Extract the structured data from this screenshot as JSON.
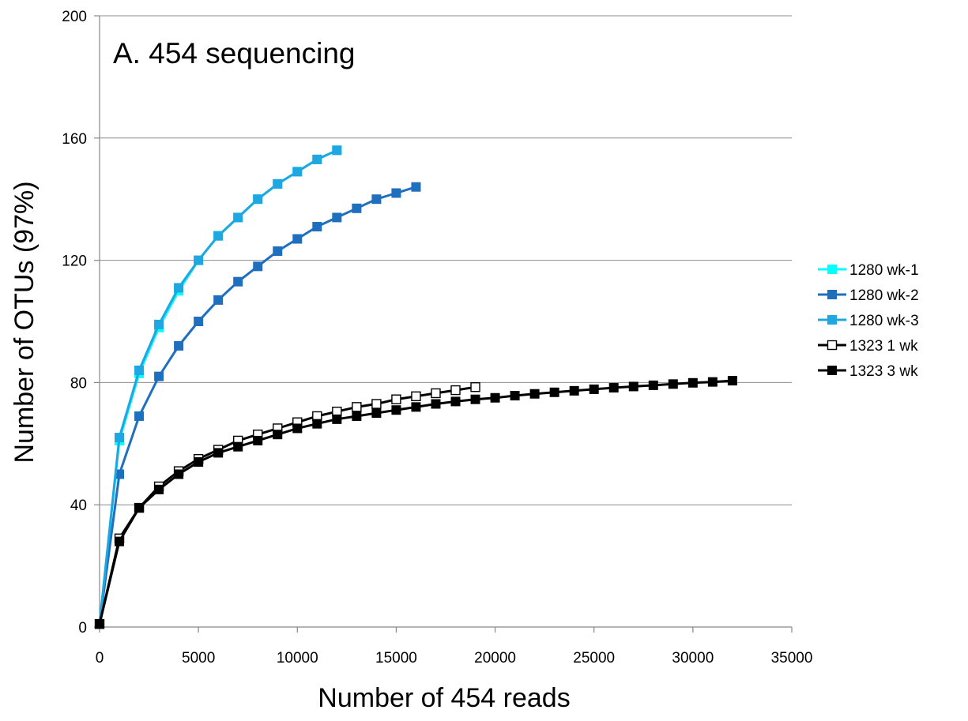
{
  "chart_data": {
    "type": "line",
    "title": "A. 454 sequencing",
    "xlabel": "Number of 454 reads",
    "ylabel": "Number of OTUs (97%)",
    "xlim": [
      0,
      35000
    ],
    "ylim": [
      0,
      200
    ],
    "xticks": [
      0,
      5000,
      10000,
      15000,
      20000,
      25000,
      30000,
      35000
    ],
    "yticks": [
      0,
      40,
      80,
      120,
      160,
      200
    ],
    "grid": "horizontal",
    "legend_position": "right",
    "series": [
      {
        "name": "1280 wk-1",
        "color": "#00FFFF",
        "marker": "square-filled",
        "x": [
          0,
          1000,
          2000,
          3000,
          4000,
          5000,
          6000,
          7000,
          8000,
          9000,
          10000,
          11000,
          12000
        ],
        "y": [
          1,
          61,
          83,
          98,
          110,
          120,
          128,
          134,
          140,
          145,
          149,
          153,
          156
        ]
      },
      {
        "name": "1280 wk-2",
        "color": "#1F6FBF",
        "marker": "square-filled",
        "x": [
          0,
          1000,
          2000,
          3000,
          4000,
          5000,
          6000,
          7000,
          8000,
          9000,
          10000,
          11000,
          12000,
          13000,
          14000,
          15000,
          16000
        ],
        "y": [
          1,
          50,
          69,
          82,
          92,
          100,
          107,
          113,
          118,
          123,
          127,
          131,
          134,
          137,
          140,
          142,
          144
        ]
      },
      {
        "name": "1280 wk-3",
        "color": "#1EA7E1",
        "marker": "square-filled",
        "x": [
          0,
          1000,
          2000,
          3000,
          4000,
          5000,
          6000,
          7000,
          8000,
          9000,
          10000,
          11000,
          12000
        ],
        "y": [
          1,
          62,
          84,
          99,
          111,
          120,
          128,
          134,
          140,
          145,
          149,
          153,
          156
        ]
      },
      {
        "name": "1323 1 wk",
        "color": "#000000",
        "marker": "square-open",
        "x": [
          0,
          1000,
          2000,
          3000,
          4000,
          5000,
          6000,
          7000,
          8000,
          9000,
          10000,
          11000,
          12000,
          13000,
          14000,
          15000,
          16000,
          17000,
          18000,
          19000
        ],
        "y": [
          1,
          29,
          39,
          46,
          51,
          55,
          58,
          61,
          63,
          65,
          67,
          69,
          70.5,
          72,
          73,
          74.5,
          75.5,
          76.5,
          77.5,
          78.5
        ]
      },
      {
        "name": "1323 3 wk",
        "color": "#000000",
        "marker": "square-filled",
        "x": [
          0,
          1000,
          2000,
          3000,
          4000,
          5000,
          6000,
          7000,
          8000,
          9000,
          10000,
          11000,
          12000,
          13000,
          14000,
          15000,
          16000,
          17000,
          18000,
          19000,
          20000,
          21000,
          22000,
          23000,
          24000,
          25000,
          26000,
          27000,
          28000,
          29000,
          30000,
          31000,
          32000
        ],
        "y": [
          1,
          28,
          39,
          45,
          50,
          54,
          57,
          59,
          61,
          63,
          65,
          66.5,
          68,
          69,
          70,
          71,
          72,
          73,
          73.8,
          74.5,
          75,
          75.7,
          76.3,
          76.8,
          77.3,
          77.8,
          78.3,
          78.7,
          79.1,
          79.5,
          79.9,
          80.2,
          80.6
        ]
      }
    ]
  }
}
